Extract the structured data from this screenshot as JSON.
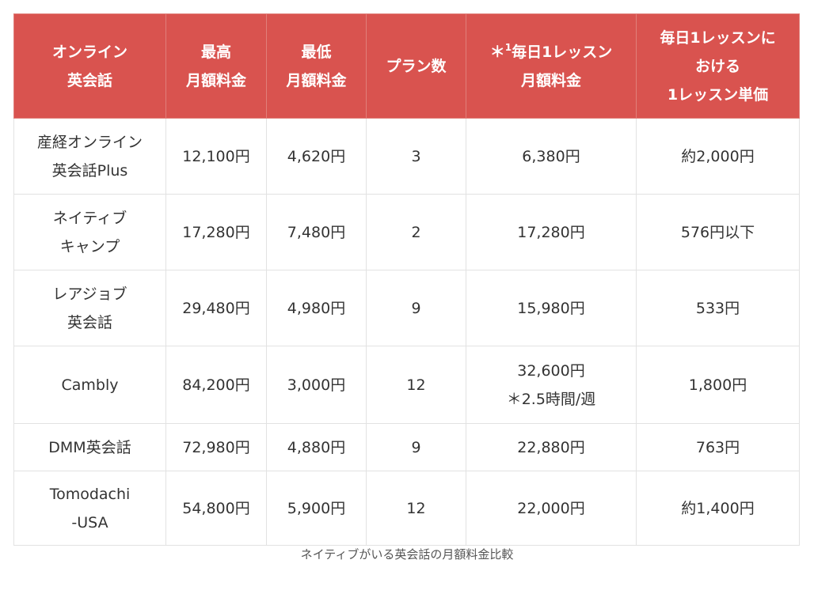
{
  "colors": {
    "header_bg": "#d9534f",
    "header_text": "#ffffff",
    "border": "#e2e2e2"
  },
  "table": {
    "headers": [
      [
        "オンライン",
        "英会話"
      ],
      [
        "最高",
        "月額料金"
      ],
      [
        "最低",
        "月額料金"
      ],
      [
        "プラン数"
      ],
      [
        "＊",
        "1",
        "毎日1レッスン",
        "月額料金"
      ],
      [
        "毎日1レッスンに",
        "おける",
        "1レッスン単価"
      ]
    ],
    "rows": [
      {
        "service": [
          "産経オンライン",
          "英会話Plus"
        ],
        "max": "12,100円",
        "min": "4,620円",
        "plans": "3",
        "daily": [
          "6,380円"
        ],
        "unit": "約2,000円"
      },
      {
        "service": [
          "ネイティブ",
          "キャンプ"
        ],
        "max": "17,280円",
        "min": "7,480円",
        "plans": "2",
        "daily": [
          "17,280円"
        ],
        "unit": "576円以下"
      },
      {
        "service": [
          "レアジョブ",
          "英会話"
        ],
        "max": "29,480円",
        "min": "4,980円",
        "plans": "9",
        "daily": [
          "15,980円"
        ],
        "unit": "533円"
      },
      {
        "service": [
          "Cambly"
        ],
        "max": "84,200円",
        "min": "3,000円",
        "plans": "12",
        "daily": [
          "32,600円",
          "＊2.5時間/週"
        ],
        "unit": "1,800円"
      },
      {
        "service": [
          "DMM英会話"
        ],
        "max": "72,980円",
        "min": "4,880円",
        "plans": "9",
        "daily": [
          "22,880円"
        ],
        "unit": "763円"
      },
      {
        "service": [
          "Tomodachi",
          "-USA"
        ],
        "max": "54,800円",
        "min": "5,900円",
        "plans": "12",
        "daily": [
          "22,000円"
        ],
        "unit": "約1,400円"
      }
    ]
  },
  "caption": "ネイティブがいる英会話の月額料金比較"
}
